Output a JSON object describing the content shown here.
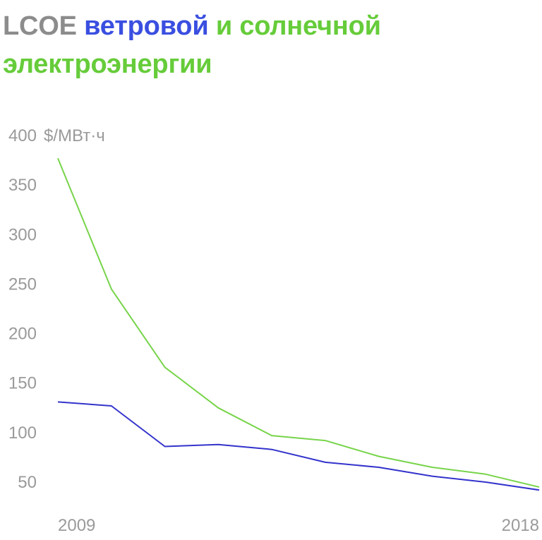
{
  "title": {
    "part1": "LCOE",
    "part2": "ветровой",
    "part3": "и солнечной",
    "part4": "электроэнергии"
  },
  "colors": {
    "wind": "#3333cc",
    "solar": "#77d44a",
    "title_gray": "#8c8c8c",
    "title_blue": "#3a4fe0",
    "title_green": "#66cc3a"
  },
  "chart_data": {
    "type": "line",
    "ylabel": "",
    "y_unit": "$/МВт·ч",
    "ylim": [
      50,
      400
    ],
    "yticks": [
      400,
      350,
      300,
      250,
      200,
      150,
      100,
      50
    ],
    "xlim": [
      2009,
      2018
    ],
    "x_tick_labels": [
      "2009",
      "2018"
    ],
    "x": [
      2009,
      2010,
      2011,
      2012,
      2013,
      2014,
      2015,
      2016,
      2017,
      2018
    ],
    "grid": false,
    "series": [
      {
        "key": "solar",
        "values": [
          377,
          245,
          166,
          125,
          97,
          92,
          76,
          65,
          58,
          45
        ]
      },
      {
        "key": "wind",
        "values": [
          131,
          127,
          86,
          88,
          83,
          70,
          65,
          56,
          50,
          42
        ]
      }
    ]
  }
}
